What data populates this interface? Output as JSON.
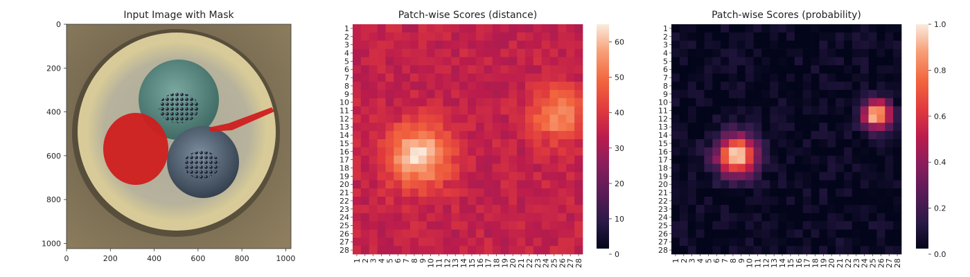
{
  "chart_data": [
    {
      "type": "image",
      "title": "Input Image with Mask",
      "xlim": [
        0,
        1024
      ],
      "ylim": [
        1024,
        0
      ],
      "xticks": [
        "0",
        "200",
        "400",
        "600",
        "800",
        "1000"
      ],
      "yticks": [
        "0",
        "200",
        "400",
        "600",
        "800",
        "1000"
      ],
      "image_content": {
        "description_icons": [
          "well-plate",
          "blue-disc-upper",
          "blue-disc-lower",
          "red-mask-disc",
          "red-mask-streak"
        ],
        "mask_color": "#cf1f1f"
      }
    },
    {
      "type": "heatmap",
      "title": "Patch-wise Scores (distance)",
      "rows": 28,
      "cols": 28,
      "row_labels": [
        "1",
        "2",
        "3",
        "4",
        "5",
        "6",
        "7",
        "8",
        "9",
        "10",
        "11",
        "12",
        "13",
        "14",
        "15",
        "16",
        "17",
        "18",
        "19",
        "20",
        "21",
        "22",
        "23",
        "24",
        "25",
        "26",
        "27",
        "28"
      ],
      "col_labels": [
        "1",
        "2",
        "3",
        "4",
        "5",
        "6",
        "7",
        "8",
        "9",
        "10",
        "11",
        "12",
        "13",
        "14",
        "15",
        "16",
        "17",
        "18",
        "19",
        "20",
        "21",
        "22",
        "23",
        "24",
        "25",
        "26",
        "27",
        "28"
      ],
      "colorbar": {
        "min": 0,
        "max": 65,
        "ticks": [
          "0",
          "10",
          "20",
          "30",
          "40",
          "50",
          "60"
        ]
      },
      "colormap": "rocket",
      "base_value": 34,
      "hotspots": [
        {
          "row": 16.5,
          "col": 8.5,
          "peak": 64,
          "sigma": 2.6
        },
        {
          "row": 11.5,
          "col": 25.5,
          "peak": 55,
          "sigma": 2.2
        }
      ]
    },
    {
      "type": "heatmap",
      "title": "Patch-wise Scores (probability)",
      "rows": 28,
      "cols": 28,
      "row_labels": [
        "1",
        "2",
        "3",
        "4",
        "5",
        "6",
        "7",
        "8",
        "9",
        "10",
        "11",
        "12",
        "13",
        "14",
        "15",
        "16",
        "17",
        "18",
        "19",
        "20",
        "21",
        "22",
        "23",
        "24",
        "25",
        "26",
        "27",
        "28"
      ],
      "col_labels": [
        "1",
        "2",
        "3",
        "4",
        "5",
        "6",
        "7",
        "8",
        "9",
        "10",
        "11",
        "12",
        "13",
        "14",
        "15",
        "16",
        "17",
        "18",
        "19",
        "20",
        "21",
        "22",
        "23",
        "24",
        "25",
        "26",
        "27",
        "28"
      ],
      "colorbar": {
        "min": 0.0,
        "max": 1.0,
        "ticks": [
          "0.0",
          "0.2",
          "0.4",
          "0.6",
          "0.8",
          "1.0"
        ]
      },
      "colormap": "rocket",
      "base_value": 0.02,
      "hotspots": [
        {
          "row": 16.5,
          "col": 8.5,
          "peak": 1.0,
          "sigma": 1.7
        },
        {
          "row": 11.5,
          "col": 25.5,
          "peak": 1.0,
          "sigma": 1.2
        }
      ]
    }
  ]
}
